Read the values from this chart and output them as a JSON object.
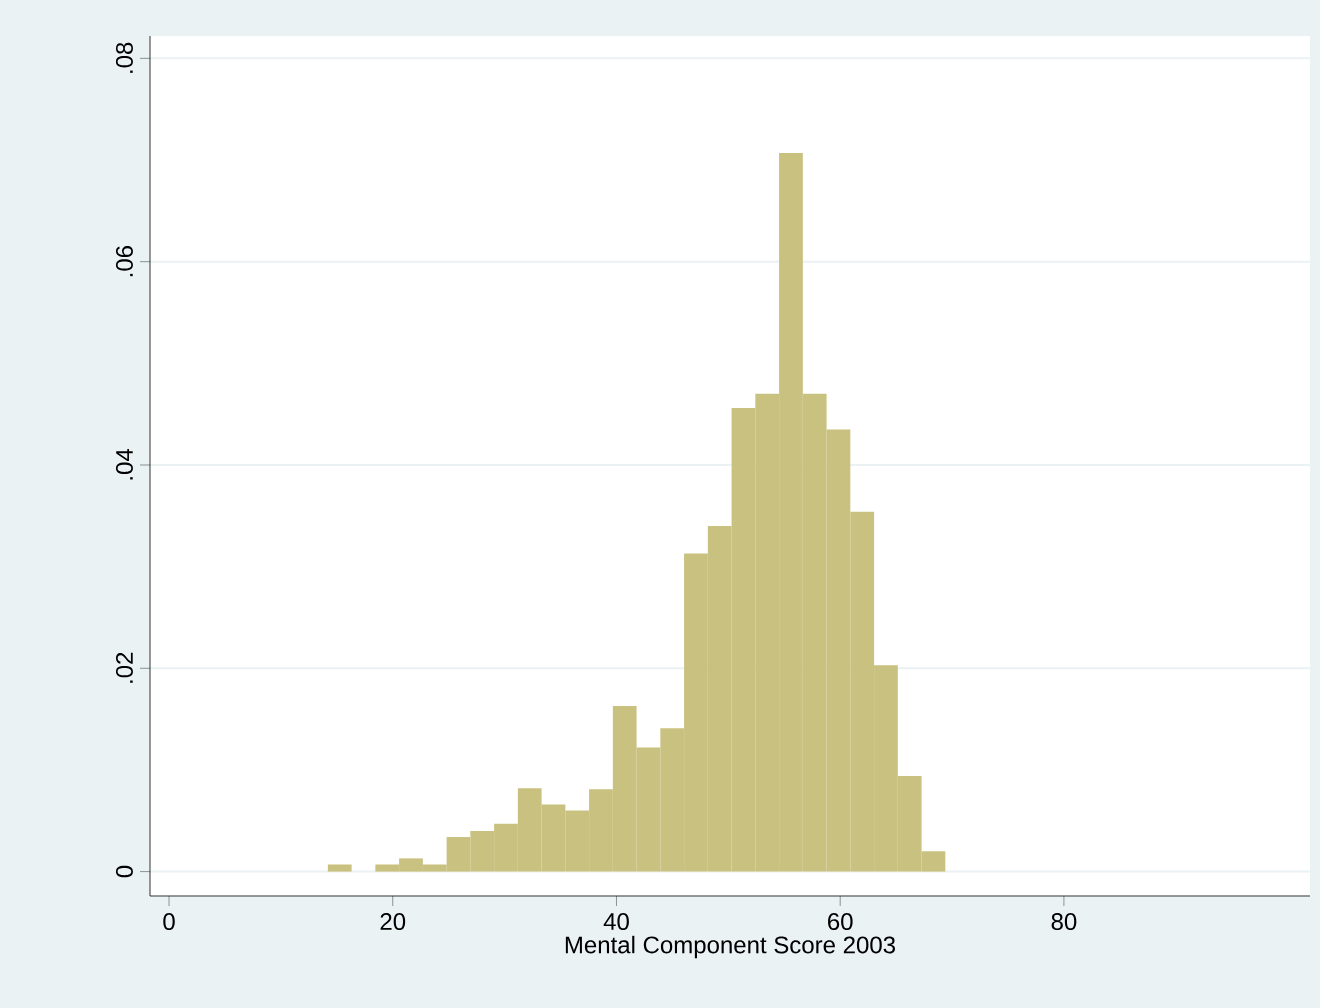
{
  "chart_data": {
    "type": "histogram",
    "xlabel": "Mental Component Score 2003",
    "bins": [
      14.2,
      16.323,
      18.446,
      20.569,
      22.692,
      24.815,
      26.938,
      29.061,
      31.184,
      33.307,
      35.43,
      37.553,
      39.676,
      41.799,
      43.922,
      46.045,
      48.168,
      50.291,
      52.414,
      54.537,
      56.66,
      58.783,
      60.906,
      63.029,
      65.152,
      67.275,
      69.398
    ],
    "values": [
      0.0007,
      0,
      0.0007,
      0.0013,
      0.0007,
      0.0034,
      0.004,
      0.0047,
      0.0082,
      0.0066,
      0.006,
      0.0081,
      0.0163,
      0.0122,
      0.0141,
      0.0313,
      0.034,
      0.0456,
      0.047,
      0.0707,
      0.047,
      0.0435,
      0.0354,
      0.0203,
      0.0094,
      0.002
    ],
    "color": "#c9c17f",
    "xlim": [
      -1.7,
      102
    ],
    "ylim": [
      -0.0024,
      0.0822
    ],
    "xticks": [
      0,
      20,
      40,
      60,
      80
    ],
    "yticks": [
      {
        "value": 0,
        "label": "0"
      },
      {
        "value": 0.02,
        "label": ".02"
      },
      {
        "value": 0.04,
        "label": ".04"
      },
      {
        "value": 0.06,
        "label": ".06"
      },
      {
        "value": 0.08,
        "label": ".08"
      }
    ],
    "grid": "y"
  }
}
